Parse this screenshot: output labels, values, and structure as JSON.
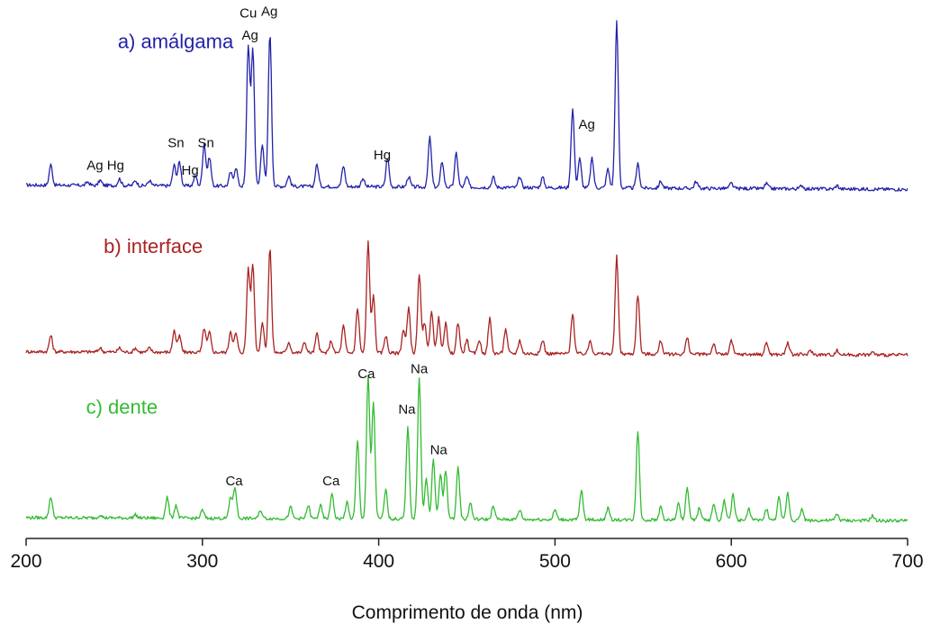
{
  "chart_data": {
    "type": "line",
    "title": "",
    "xlabel": "Comprimento de onda (nm)",
    "ylabel": "",
    "xlim": [
      200,
      700
    ],
    "xticks": [
      "200",
      "300",
      "400",
      "500",
      "600",
      "700"
    ],
    "grid": false,
    "legend": "none",
    "series": [
      {
        "name": "a) amálgama",
        "color": "#2222aa",
        "baseline": 0.05,
        "noise": 0.02,
        "peaks": [
          [
            214,
            0.12
          ],
          [
            235,
            0.02
          ],
          [
            242,
            0.03
          ],
          [
            253,
            0.04
          ],
          [
            262,
            0.03
          ],
          [
            270,
            0.03
          ],
          [
            284,
            0.12
          ],
          [
            287,
            0.14
          ],
          [
            296,
            0.06
          ],
          [
            301,
            0.25
          ],
          [
            304,
            0.17
          ],
          [
            316,
            0.08
          ],
          [
            319,
            0.11
          ],
          [
            326,
            0.82
          ],
          [
            328.6,
            0.8
          ],
          [
            334,
            0.25
          ],
          [
            338.3,
            0.9
          ],
          [
            349,
            0.06
          ],
          [
            365,
            0.13
          ],
          [
            380,
            0.12
          ],
          [
            391,
            0.05
          ],
          [
            405,
            0.17
          ],
          [
            417,
            0.06
          ],
          [
            429,
            0.29
          ],
          [
            436,
            0.15
          ],
          [
            444,
            0.2
          ],
          [
            450,
            0.06
          ],
          [
            465,
            0.06
          ],
          [
            480,
            0.06
          ],
          [
            493,
            0.06
          ],
          [
            510,
            0.46
          ],
          [
            514,
            0.17
          ],
          [
            521,
            0.17
          ],
          [
            530,
            0.11
          ],
          [
            535,
            0.97
          ],
          [
            547,
            0.14
          ],
          [
            560,
            0.04
          ],
          [
            580,
            0.04
          ],
          [
            600,
            0.03
          ],
          [
            620,
            0.03
          ],
          [
            640,
            0.02
          ],
          [
            660,
            0.02
          ]
        ],
        "annotations": [
          {
            "text": "a) amálgama",
            "x": 252,
            "y": 0.85
          },
          {
            "text": "Ag Hg",
            "x": 245,
            "y": 0.14
          },
          {
            "text": "Sn",
            "x": 285,
            "y": 0.27
          },
          {
            "text": "Hg",
            "x": 293,
            "y": 0.11
          },
          {
            "text": "Sn",
            "x": 302,
            "y": 0.27
          },
          {
            "text": "Cu",
            "x": 326,
            "y": 1.03
          },
          {
            "text": "Ag",
            "x": 327,
            "y": 0.9
          },
          {
            "text": "Ag",
            "x": 338,
            "y": 1.04
          },
          {
            "text": "Hg",
            "x": 402,
            "y": 0.2
          },
          {
            "text": "Ag",
            "x": 518,
            "y": 0.38
          }
        ]
      },
      {
        "name": "b) interface",
        "color": "#aa2222",
        "baseline": 0.05,
        "noise": 0.025,
        "peaks": [
          [
            214,
            0.12
          ],
          [
            242,
            0.03
          ],
          [
            253,
            0.03
          ],
          [
            262,
            0.03
          ],
          [
            270,
            0.03
          ],
          [
            284,
            0.16
          ],
          [
            287,
            0.12
          ],
          [
            301,
            0.18
          ],
          [
            304,
            0.15
          ],
          [
            316,
            0.16
          ],
          [
            319,
            0.14
          ],
          [
            326,
            0.62
          ],
          [
            328.6,
            0.65
          ],
          [
            334,
            0.22
          ],
          [
            338.3,
            0.78
          ],
          [
            349,
            0.08
          ],
          [
            358,
            0.08
          ],
          [
            365,
            0.14
          ],
          [
            373,
            0.09
          ],
          [
            380,
            0.2
          ],
          [
            388,
            0.33
          ],
          [
            394,
            0.82
          ],
          [
            397,
            0.42
          ],
          [
            404,
            0.13
          ],
          [
            414,
            0.17
          ],
          [
            417,
            0.33
          ],
          [
            423,
            0.59
          ],
          [
            426,
            0.22
          ],
          [
            430,
            0.32
          ],
          [
            434,
            0.26
          ],
          [
            438,
            0.22
          ],
          [
            445,
            0.23
          ],
          [
            450,
            0.1
          ],
          [
            457,
            0.1
          ],
          [
            463,
            0.26
          ],
          [
            472,
            0.18
          ],
          [
            480,
            0.1
          ],
          [
            493,
            0.1
          ],
          [
            510,
            0.3
          ],
          [
            520,
            0.1
          ],
          [
            535,
            0.72
          ],
          [
            547,
            0.44
          ],
          [
            560,
            0.1
          ],
          [
            575,
            0.12
          ],
          [
            590,
            0.08
          ],
          [
            600,
            0.1
          ],
          [
            620,
            0.09
          ],
          [
            632,
            0.09
          ],
          [
            645,
            0.03
          ],
          [
            660,
            0.03
          ],
          [
            680,
            0.02
          ]
        ],
        "annotations": [
          {
            "text": "b) interface",
            "x": 244,
            "y": 0.78
          }
        ]
      },
      {
        "name": "c) dente",
        "color": "#33bb33",
        "baseline": 0.04,
        "noise": 0.02,
        "peaks": [
          [
            214,
            0.13
          ],
          [
            242,
            0.02
          ],
          [
            262,
            0.02
          ],
          [
            280,
            0.13
          ],
          [
            285,
            0.08
          ],
          [
            300,
            0.05
          ],
          [
            316,
            0.13
          ],
          [
            318.5,
            0.19
          ],
          [
            333,
            0.05
          ],
          [
            350,
            0.07
          ],
          [
            360,
            0.08
          ],
          [
            367,
            0.08
          ],
          [
            373.5,
            0.16
          ],
          [
            382,
            0.1
          ],
          [
            388,
            0.48
          ],
          [
            394,
            0.88
          ],
          [
            397,
            0.72
          ],
          [
            404,
            0.18
          ],
          [
            416.5,
            0.56
          ],
          [
            423,
            0.88
          ],
          [
            427,
            0.25
          ],
          [
            431,
            0.36
          ],
          [
            435,
            0.28
          ],
          [
            438,
            0.3
          ],
          [
            445,
            0.32
          ],
          [
            452,
            0.1
          ],
          [
            465,
            0.08
          ],
          [
            480,
            0.06
          ],
          [
            500,
            0.06
          ],
          [
            515,
            0.18
          ],
          [
            530,
            0.07
          ],
          [
            547,
            0.55
          ],
          [
            560,
            0.08
          ],
          [
            570,
            0.1
          ],
          [
            575,
            0.2
          ],
          [
            582,
            0.08
          ],
          [
            590,
            0.1
          ],
          [
            596,
            0.12
          ],
          [
            601,
            0.16
          ],
          [
            610,
            0.07
          ],
          [
            620,
            0.07
          ],
          [
            627,
            0.14
          ],
          [
            632,
            0.17
          ],
          [
            640,
            0.07
          ],
          [
            660,
            0.04
          ],
          [
            680,
            0.03
          ]
        ],
        "annotations": [
          {
            "text": "c) dente",
            "x": 234,
            "y": 0.68
          },
          {
            "text": "Ca",
            "x": 318,
            "y": 0.24
          },
          {
            "text": "Ca",
            "x": 373,
            "y": 0.24
          },
          {
            "text": "Ca",
            "x": 393,
            "y": 0.9
          },
          {
            "text": "Na",
            "x": 416,
            "y": 0.68
          },
          {
            "text": "Na",
            "x": 423,
            "y": 0.93
          },
          {
            "text": "Na",
            "x": 434,
            "y": 0.43
          }
        ]
      }
    ]
  }
}
